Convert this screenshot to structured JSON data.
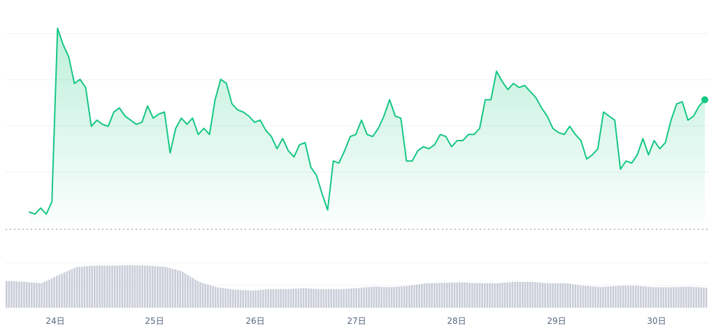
{
  "chart_data": {
    "type": "area",
    "title": "",
    "xlabel": "",
    "ylabel": "",
    "x_tick_labels": [
      "24日",
      "25日",
      "26日",
      "27日",
      "28日",
      "29日",
      "30日"
    ],
    "x_range_days": [
      23.69,
      30.57
    ],
    "y_axis_labels_shown": false,
    "grid": true,
    "legend": "none",
    "colors": {
      "line": "#16c784",
      "area_top": "#16c784",
      "volume_bar": "#c9ccd8",
      "grid": "#eef0f4",
      "baseline": "#9aa0aa",
      "tick_text": "#58667e"
    },
    "series": [
      {
        "values_relative": [
          0.03,
          0.02,
          0.05,
          0.02,
          0.08,
          0.93,
          0.85,
          0.79,
          0.66,
          0.68,
          0.64,
          0.45,
          0.48,
          0.46,
          0.45,
          0.52,
          0.54,
          0.5,
          0.48,
          0.46,
          0.47,
          0.55,
          0.49,
          0.51,
          0.52,
          0.32,
          0.44,
          0.49,
          0.46,
          0.49,
          0.41,
          0.44,
          0.41,
          0.58,
          0.68,
          0.66,
          0.56,
          0.53,
          0.52,
          0.5,
          0.47,
          0.48,
          0.43,
          0.4,
          0.34,
          0.39,
          0.33,
          0.3,
          0.36,
          0.37,
          0.25,
          0.21,
          0.12,
          0.04,
          0.28,
          0.27,
          0.33,
          0.4,
          0.41,
          0.48,
          0.41,
          0.4,
          0.44,
          0.5,
          0.58,
          0.5,
          0.49,
          0.28,
          0.28,
          0.33,
          0.35,
          0.34,
          0.36,
          0.41,
          0.4,
          0.35,
          0.38,
          0.38,
          0.41,
          0.41,
          0.44,
          0.58,
          0.58,
          0.72,
          0.67,
          0.63,
          0.66,
          0.64,
          0.65,
          0.62,
          0.59,
          0.54,
          0.5,
          0.44,
          0.42,
          0.41,
          0.45,
          0.41,
          0.38,
          0.29,
          0.31,
          0.34,
          0.52,
          0.5,
          0.48,
          0.24,
          0.28,
          0.27,
          0.31,
          0.39,
          0.31,
          0.38,
          0.34,
          0.37,
          0.48,
          0.56,
          0.57,
          0.48,
          0.5,
          0.55,
          0.58
        ]
      }
    ],
    "volume": {
      "values_relative": [
        0.55,
        0.53,
        0.5,
        0.67,
        0.83,
        0.86,
        0.86,
        0.87,
        0.86,
        0.84,
        0.75,
        0.53,
        0.42,
        0.37,
        0.35,
        0.38,
        0.38,
        0.4,
        0.38,
        0.38,
        0.4,
        0.43,
        0.42,
        0.45,
        0.5,
        0.51,
        0.52,
        0.5,
        0.5,
        0.53,
        0.53,
        0.5,
        0.5,
        0.45,
        0.42,
        0.45,
        0.45,
        0.42,
        0.42,
        0.43,
        0.41
      ]
    }
  }
}
